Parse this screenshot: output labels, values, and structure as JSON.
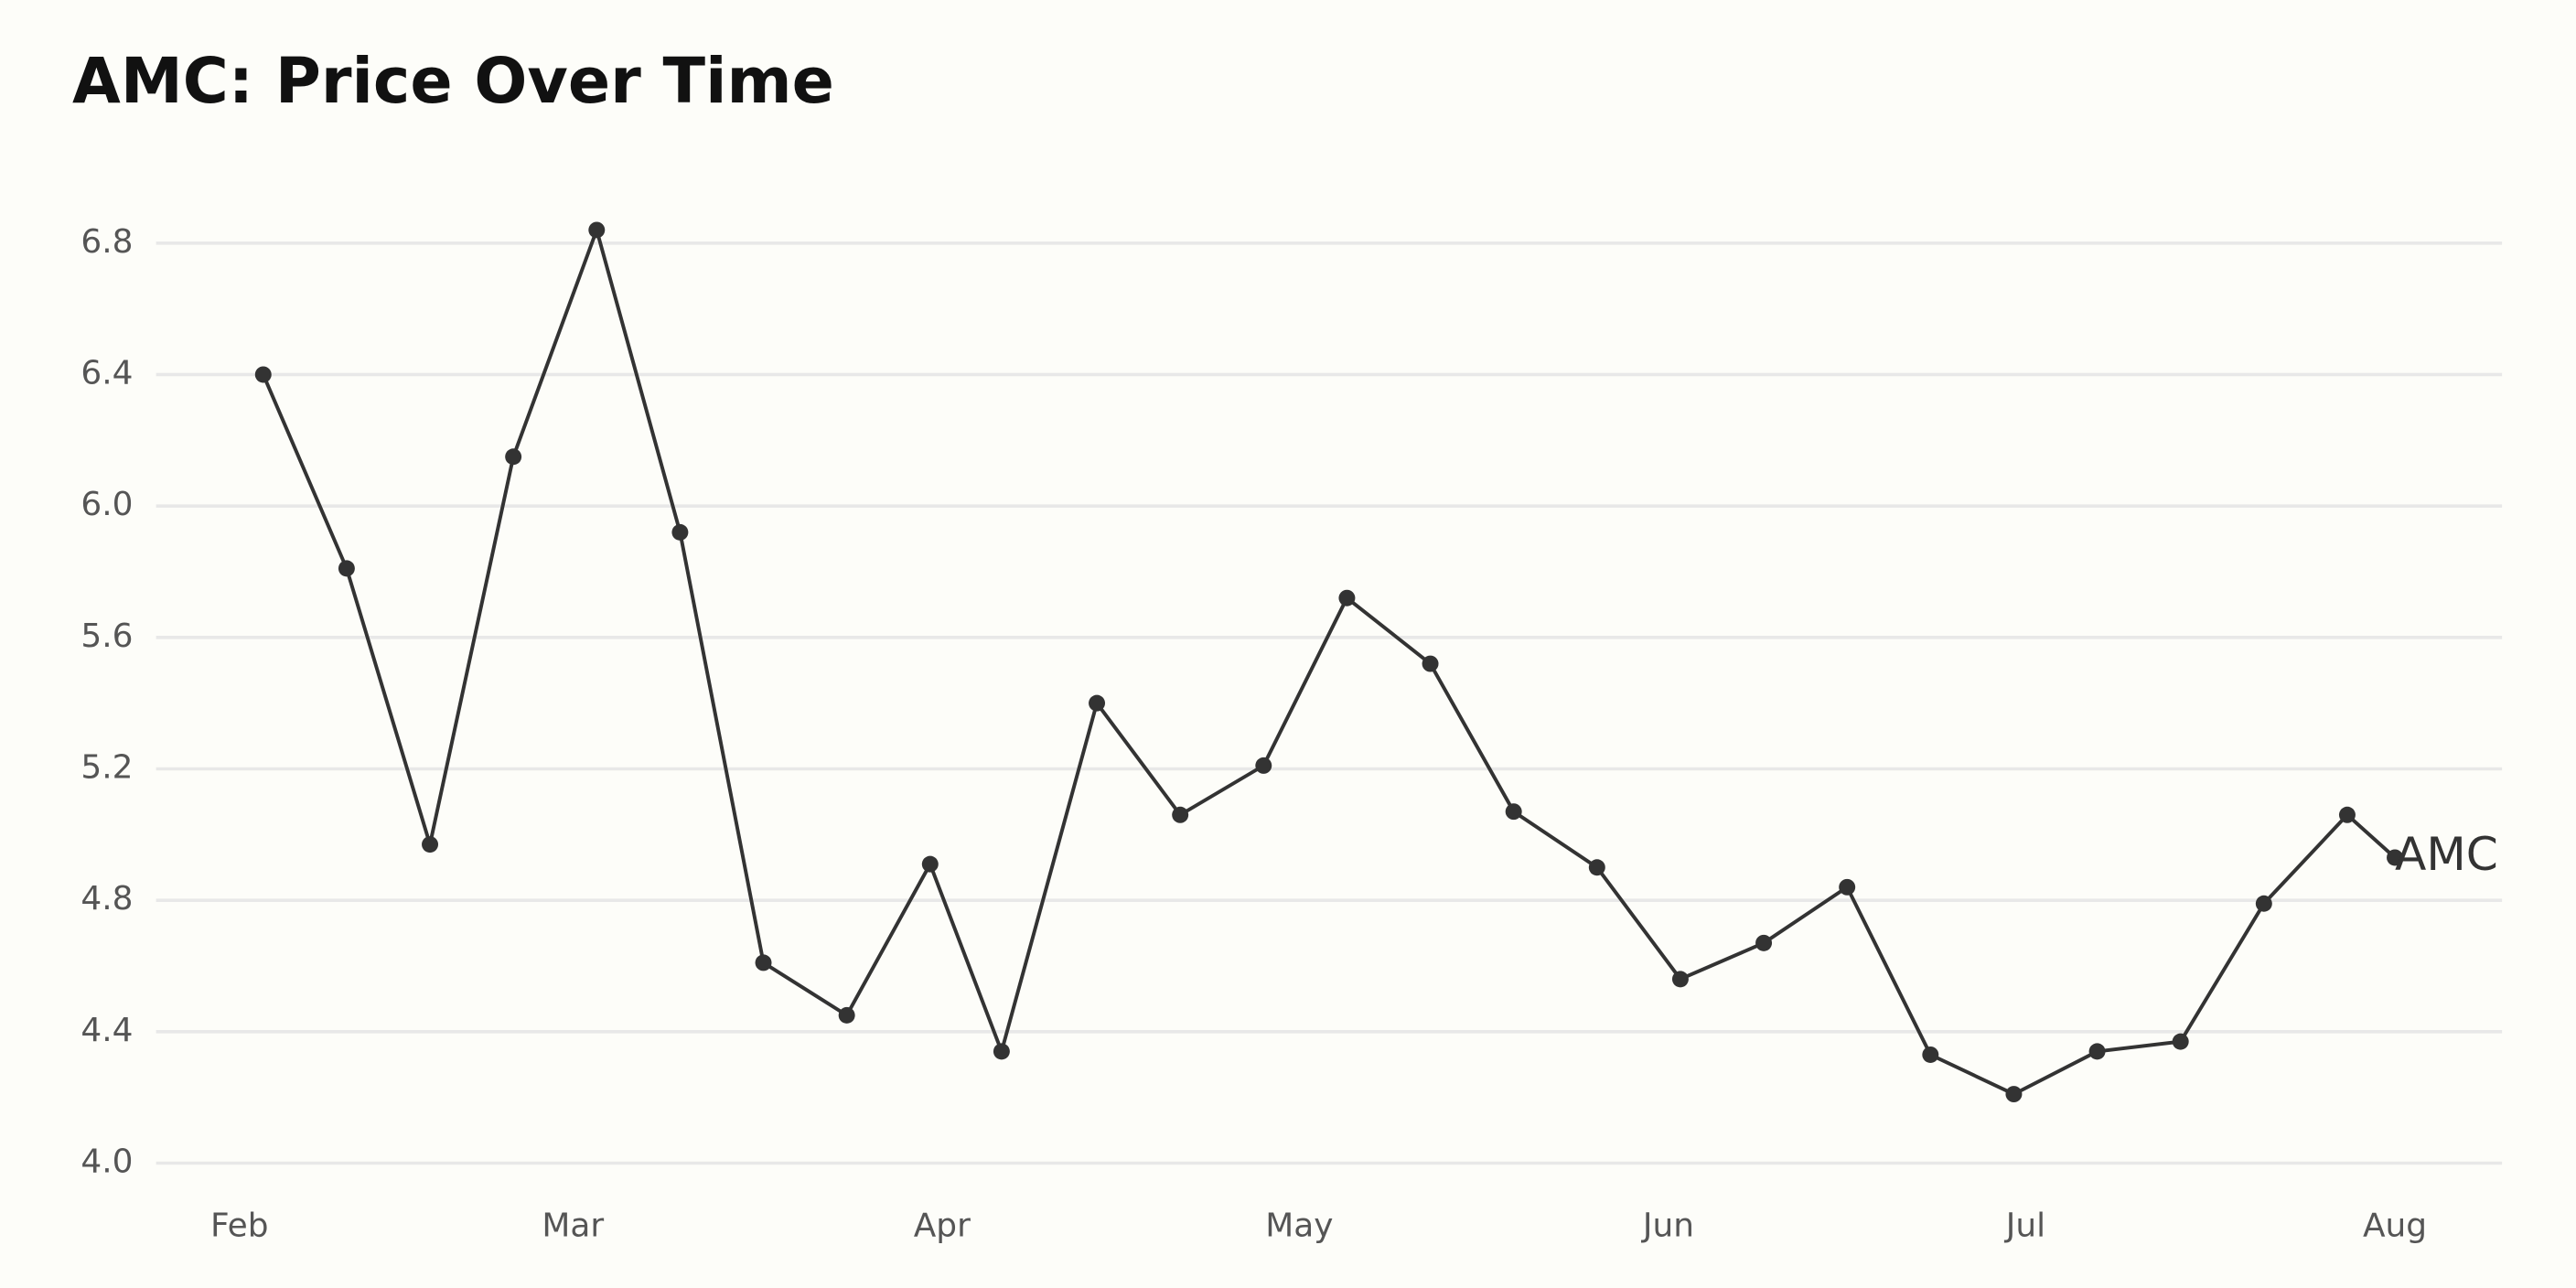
{
  "chart_data": {
    "type": "line",
    "title": "AMC: Price Over Time",
    "x": [
      2,
      9,
      16,
      23,
      30,
      37,
      44,
      51,
      58,
      64,
      72,
      79,
      86,
      93,
      100,
      107,
      114,
      121,
      128,
      135,
      142,
      149,
      156,
      163,
      170,
      177,
      181
    ],
    "series": [
      {
        "name": "AMC",
        "color": "#333333",
        "values": [
          6.4,
          5.81,
          4.97,
          6.15,
          6.84,
          5.92,
          4.61,
          4.45,
          4.91,
          4.34,
          5.4,
          5.06,
          5.21,
          5.72,
          5.52,
          5.07,
          4.9,
          4.56,
          4.67,
          4.84,
          4.33,
          4.21,
          4.34,
          4.37,
          4.79,
          5.06,
          4.93
        ]
      }
    ],
    "xlim": [
      -7,
      190
    ],
    "xticks": [
      {
        "value": 0,
        "label": "Feb"
      },
      {
        "value": 28,
        "label": "Mar"
      },
      {
        "value": 59,
        "label": "Apr"
      },
      {
        "value": 89,
        "label": "May"
      },
      {
        "value": 120,
        "label": "Jun"
      },
      {
        "value": 150,
        "label": "Jul"
      },
      {
        "value": 181,
        "label": "Aug"
      }
    ],
    "ylim": [
      4.0,
      6.9
    ],
    "yticks": [
      {
        "value": 4.0,
        "label": "4.0"
      },
      4.4,
      4.8,
      5.2,
      5.6,
      {
        "value": 6.0,
        "label": "6.0"
      },
      6.4,
      6.8
    ],
    "grid": true
  }
}
